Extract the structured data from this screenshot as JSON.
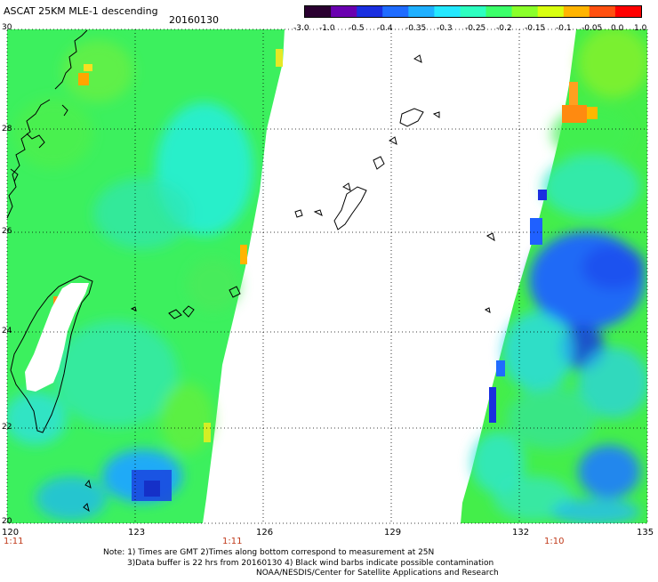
{
  "header": {
    "title": "ASCAT 25KM MLE-1 descending",
    "date": "20160130"
  },
  "colorbar": {
    "ticks": [
      "-3.0",
      "-1.0",
      "-0.5",
      "-0.4",
      "-0.35",
      "-0.3",
      "-0.25",
      "-0.2",
      "-0.15",
      "-0.1",
      "-0.05",
      "0.0",
      "1.0"
    ],
    "colors": [
      "#2a0030",
      "#6a00b0",
      "#1a2fe0",
      "#1f6cff",
      "#1fb0ff",
      "#24e8ff",
      "#2dffc0",
      "#3cff6a",
      "#8aff2a",
      "#d8ff10",
      "#ffb400",
      "#ff5010",
      "#ff0000"
    ]
  },
  "axes": {
    "lat_labels": [
      "30",
      "28",
      "26",
      "24",
      "22",
      "20"
    ],
    "lon_labels": [
      "120",
      "123",
      "126",
      "129",
      "132",
      "135"
    ],
    "time_labels": [
      "1:11",
      "1:11",
      "1:10"
    ]
  },
  "notes": [
    "Note: 1) Times are GMT 2)Times along bottom correspond to measurement at 25N",
    "3)Data buffer is 22 hrs from 20160130 4) Black wind barbs indicate possible contamination",
    "NOAA/NESDIS/Center for Satellite Applications and Research"
  ]
}
